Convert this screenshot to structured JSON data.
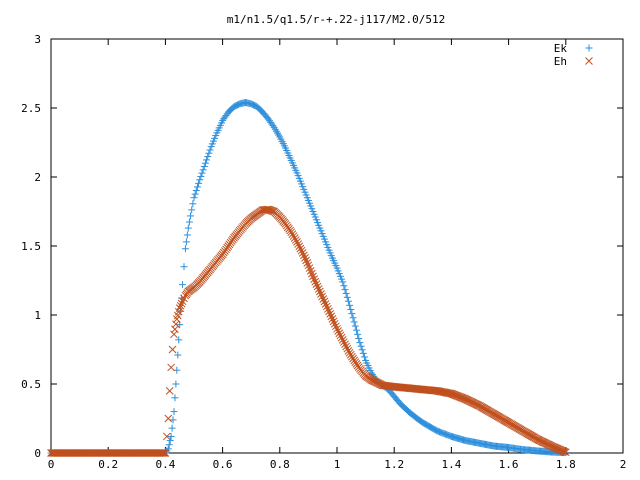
{
  "chart_data": {
    "type": "scatter",
    "title": "m1/n1.5/q1.5/r-+.22-j117/M2.0/512",
    "xlabel": "",
    "ylabel": "",
    "xlim": [
      0,
      2
    ],
    "ylim": [
      0,
      3
    ],
    "xticks": [
      "0",
      "0.2",
      "0.4",
      "0.6",
      "0.8",
      "1",
      "1.2",
      "1.4",
      "1.6",
      "1.8",
      "2"
    ],
    "yticks": [
      "0",
      "0.5",
      "1",
      "1.5",
      "2",
      "2.5",
      "3"
    ],
    "grid": false,
    "legend_position": "top-right",
    "series": [
      {
        "name": "Ek",
        "marker": "plus",
        "color": "#2e8fdc",
        "points": [
          [
            0.0,
            0
          ],
          [
            0.1,
            0
          ],
          [
            0.2,
            0
          ],
          [
            0.3,
            0
          ],
          [
            0.4,
            0
          ],
          [
            0.41,
            0.03
          ],
          [
            0.42,
            0.12
          ],
          [
            0.43,
            0.3
          ],
          [
            0.44,
            0.6
          ],
          [
            0.45,
            0.93
          ],
          [
            0.46,
            1.22
          ],
          [
            0.47,
            1.48
          ],
          [
            0.48,
            1.63
          ],
          [
            0.5,
            1.85
          ],
          [
            0.52,
            1.98
          ],
          [
            0.54,
            2.1
          ],
          [
            0.56,
            2.22
          ],
          [
            0.58,
            2.32
          ],
          [
            0.6,
            2.41
          ],
          [
            0.62,
            2.47
          ],
          [
            0.64,
            2.51
          ],
          [
            0.66,
            2.53
          ],
          [
            0.68,
            2.54
          ],
          [
            0.7,
            2.53
          ],
          [
            0.72,
            2.51
          ],
          [
            0.74,
            2.47
          ],
          [
            0.76,
            2.42
          ],
          [
            0.78,
            2.36
          ],
          [
            0.8,
            2.29
          ],
          [
            0.82,
            2.21
          ],
          [
            0.84,
            2.12
          ],
          [
            0.86,
            2.03
          ],
          [
            0.88,
            1.93
          ],
          [
            0.9,
            1.83
          ],
          [
            0.92,
            1.73
          ],
          [
            0.94,
            1.63
          ],
          [
            0.96,
            1.53
          ],
          [
            0.98,
            1.43
          ],
          [
            1.0,
            1.34
          ],
          [
            1.02,
            1.24
          ],
          [
            1.04,
            1.1
          ],
          [
            1.06,
            0.95
          ],
          [
            1.08,
            0.8
          ],
          [
            1.1,
            0.67
          ],
          [
            1.12,
            0.58
          ],
          [
            1.14,
            0.52
          ],
          [
            1.16,
            0.49
          ],
          [
            1.18,
            0.46
          ],
          [
            1.2,
            0.41
          ],
          [
            1.22,
            0.36
          ],
          [
            1.25,
            0.3
          ],
          [
            1.28,
            0.25
          ],
          [
            1.3,
            0.22
          ],
          [
            1.35,
            0.16
          ],
          [
            1.4,
            0.12
          ],
          [
            1.45,
            0.09
          ],
          [
            1.5,
            0.07
          ],
          [
            1.55,
            0.05
          ],
          [
            1.6,
            0.04
          ],
          [
            1.65,
            0.025
          ],
          [
            1.7,
            0.015
          ],
          [
            1.75,
            0.007
          ],
          [
            1.8,
            0.003
          ]
        ]
      },
      {
        "name": "Eh",
        "marker": "cross",
        "color": "#c0501e",
        "points": [
          [
            0.0,
            0
          ],
          [
            0.1,
            0
          ],
          [
            0.2,
            0
          ],
          [
            0.3,
            0
          ],
          [
            0.4,
            0
          ],
          [
            0.405,
            0.12
          ],
          [
            0.41,
            0.25
          ],
          [
            0.415,
            0.45
          ],
          [
            0.42,
            0.62
          ],
          [
            0.425,
            0.75
          ],
          [
            0.43,
            0.86
          ],
          [
            0.44,
            0.97
          ],
          [
            0.45,
            1.05
          ],
          [
            0.46,
            1.1
          ],
          [
            0.47,
            1.14
          ],
          [
            0.48,
            1.17
          ],
          [
            0.5,
            1.2
          ],
          [
            0.52,
            1.24
          ],
          [
            0.54,
            1.29
          ],
          [
            0.56,
            1.34
          ],
          [
            0.58,
            1.39
          ],
          [
            0.6,
            1.44
          ],
          [
            0.62,
            1.5
          ],
          [
            0.64,
            1.56
          ],
          [
            0.66,
            1.61
          ],
          [
            0.68,
            1.66
          ],
          [
            0.7,
            1.7
          ],
          [
            0.72,
            1.73
          ],
          [
            0.74,
            1.76
          ],
          [
            0.76,
            1.765
          ],
          [
            0.78,
            1.75
          ],
          [
            0.8,
            1.71
          ],
          [
            0.82,
            1.66
          ],
          [
            0.84,
            1.6
          ],
          [
            0.86,
            1.53
          ],
          [
            0.88,
            1.45
          ],
          [
            0.9,
            1.36
          ],
          [
            0.92,
            1.26
          ],
          [
            0.94,
            1.17
          ],
          [
            0.96,
            1.08
          ],
          [
            0.98,
            0.99
          ],
          [
            1.0,
            0.9
          ],
          [
            1.02,
            0.82
          ],
          [
            1.04,
            0.74
          ],
          [
            1.06,
            0.67
          ],
          [
            1.08,
            0.61
          ],
          [
            1.1,
            0.56
          ],
          [
            1.12,
            0.53
          ],
          [
            1.14,
            0.51
          ],
          [
            1.16,
            0.49
          ],
          [
            1.2,
            0.48
          ],
          [
            1.25,
            0.47
          ],
          [
            1.3,
            0.46
          ],
          [
            1.35,
            0.45
          ],
          [
            1.4,
            0.43
          ],
          [
            1.45,
            0.39
          ],
          [
            1.5,
            0.34
          ],
          [
            1.55,
            0.28
          ],
          [
            1.6,
            0.22
          ],
          [
            1.65,
            0.16
          ],
          [
            1.7,
            0.1
          ],
          [
            1.75,
            0.05
          ],
          [
            1.8,
            0.005
          ]
        ]
      }
    ]
  }
}
